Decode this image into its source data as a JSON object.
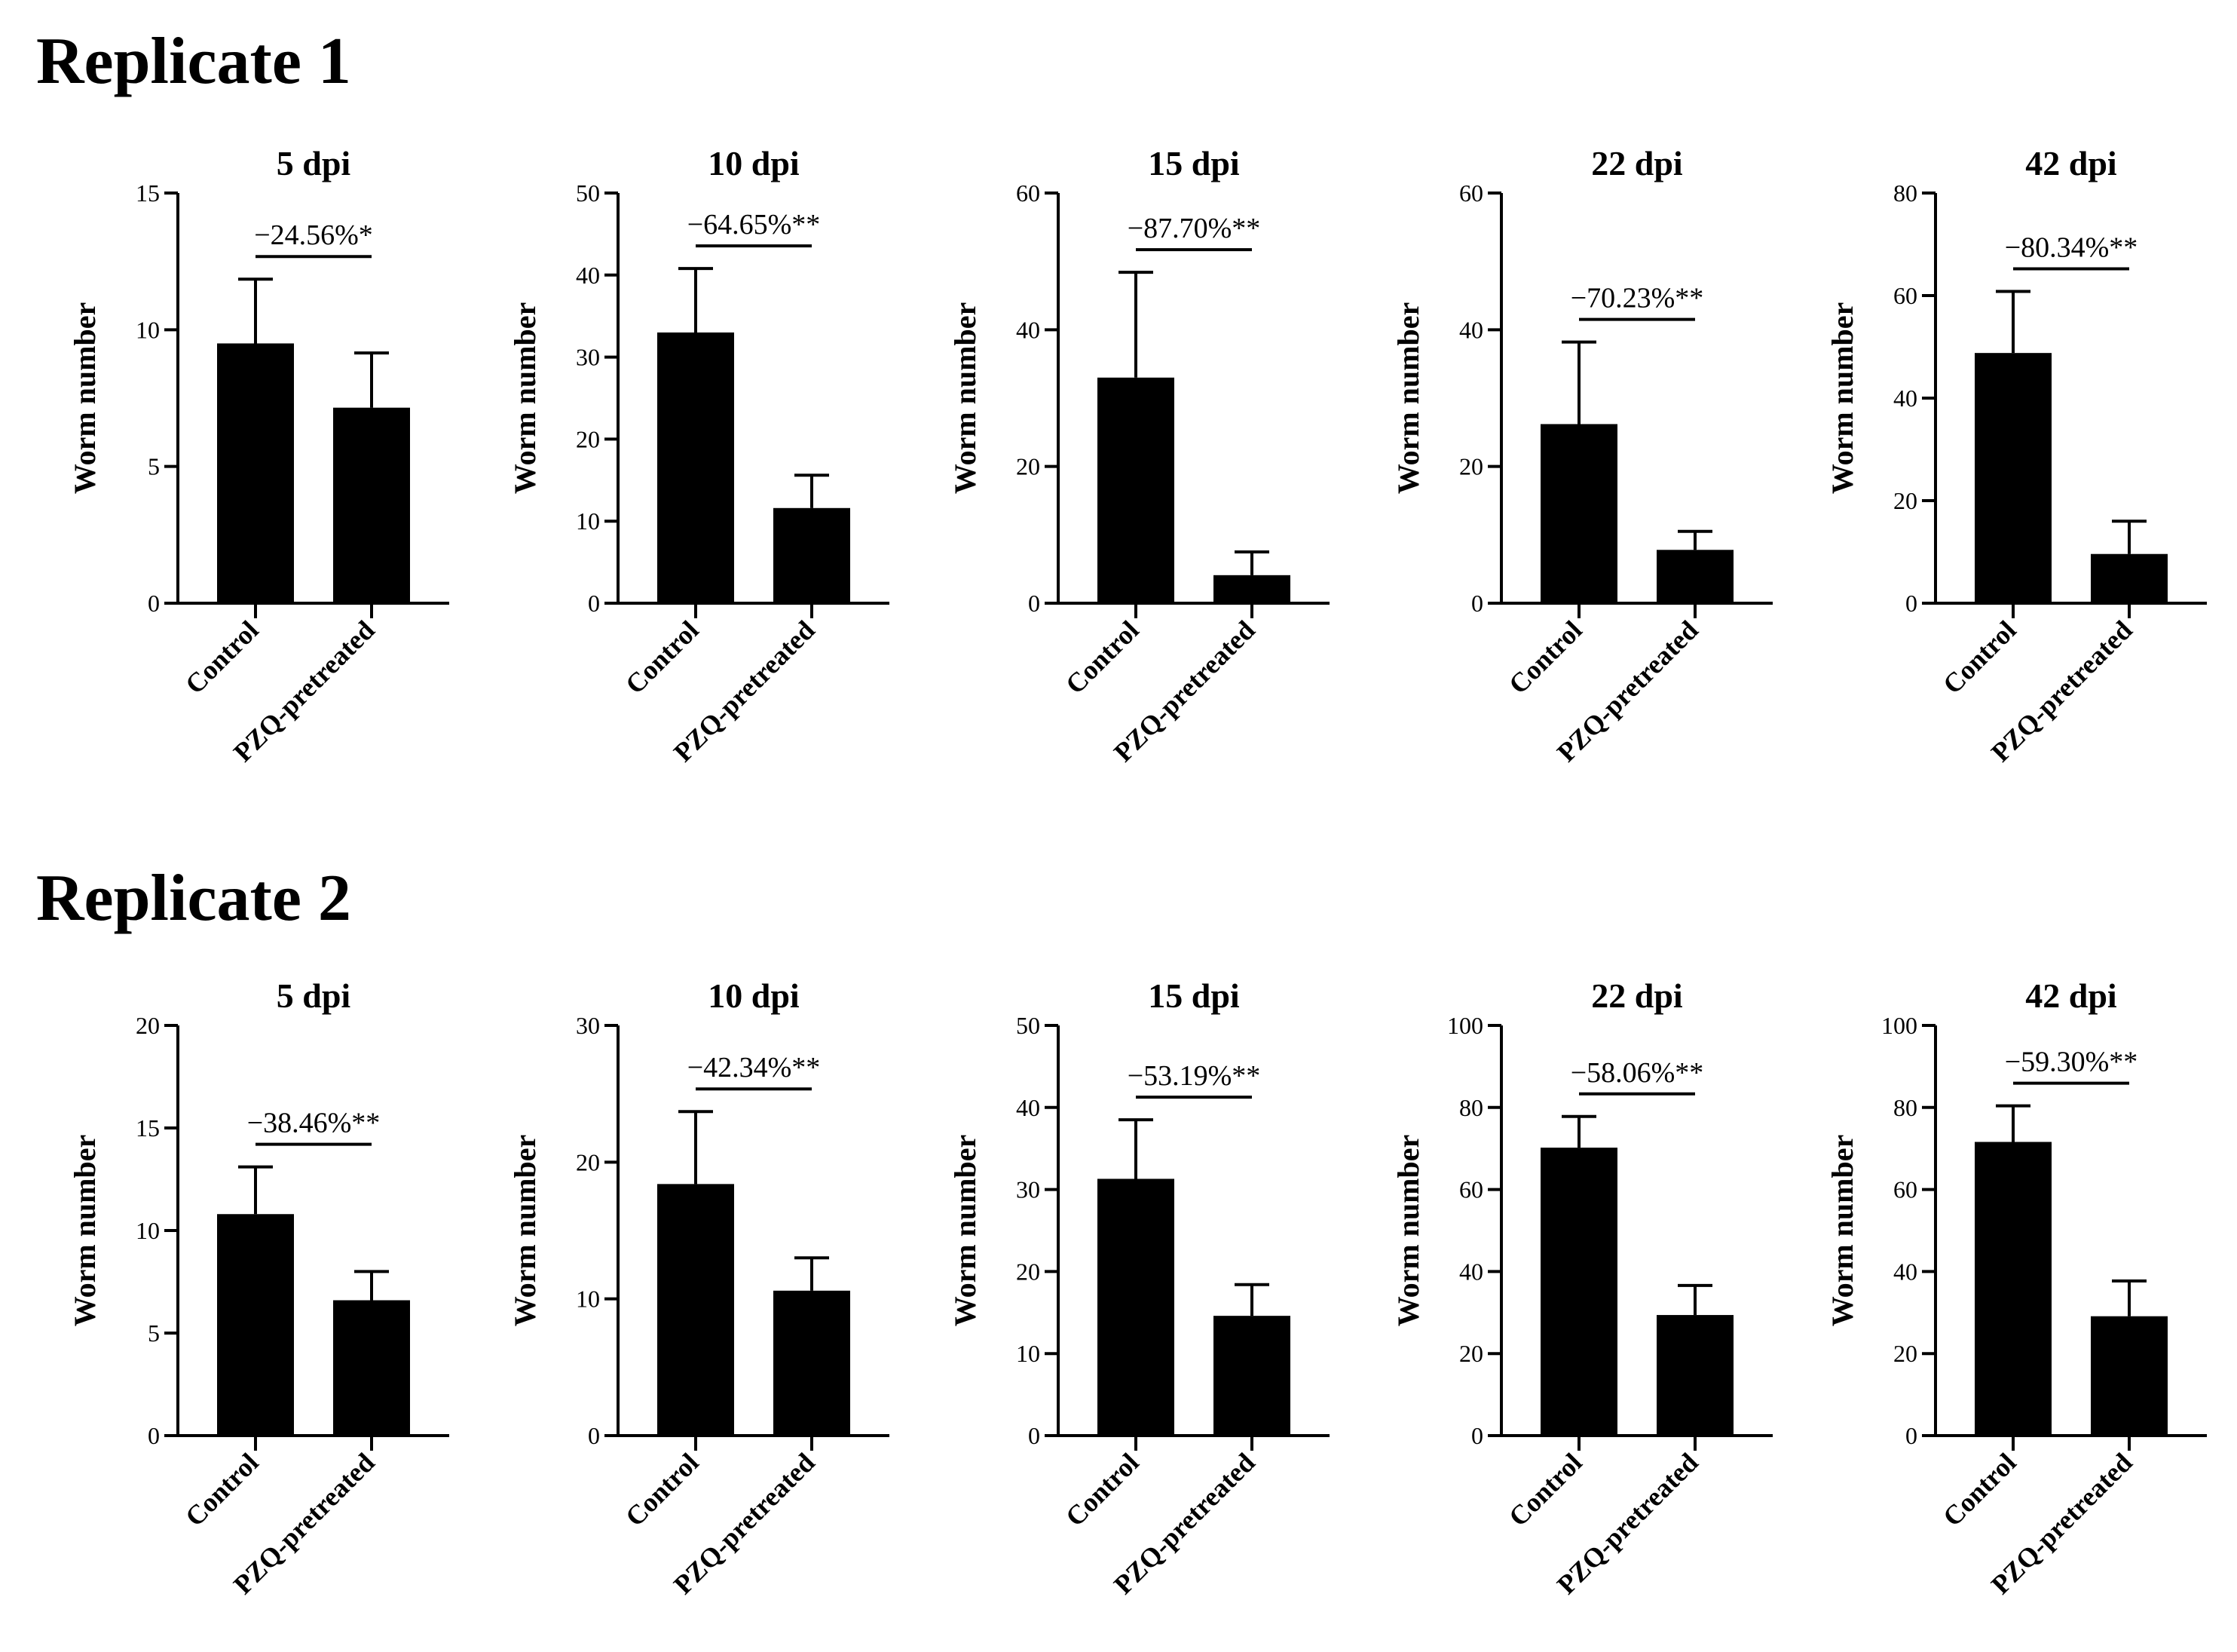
{
  "figure": {
    "replicate_titles": [
      "Replicate 1",
      "Replicate 2"
    ]
  },
  "chart_data": [
    {
      "type": "bar",
      "replicate": "Replicate 1",
      "title": "5 dpi",
      "categories": [
        "Control",
        "PZQ-pretreated"
      ],
      "values": [
        9.5,
        7.15
      ],
      "errors": [
        2.35,
        2.0
      ],
      "ylabel": "Worm number",
      "ylim": [
        0,
        15
      ],
      "yticks": [
        0,
        5,
        10,
        15
      ],
      "annotation": "−24.56%*",
      "bar_color": "#000000"
    },
    {
      "type": "bar",
      "replicate": "Replicate 1",
      "title": "10 dpi",
      "categories": [
        "Control",
        "PZQ-pretreated"
      ],
      "values": [
        33,
        11.6
      ],
      "errors": [
        7.8,
        4.0
      ],
      "ylabel": "Worm number",
      "ylim": [
        0,
        50
      ],
      "yticks": [
        0,
        10,
        20,
        30,
        40,
        50
      ],
      "annotation": "−64.65%**",
      "bar_color": "#000000"
    },
    {
      "type": "bar",
      "replicate": "Replicate 1",
      "title": "15 dpi",
      "categories": [
        "Control",
        "PZQ-pretreated"
      ],
      "values": [
        33,
        4.1
      ],
      "errors": [
        15.4,
        3.4
      ],
      "ylabel": "Worm number",
      "ylim": [
        0,
        60
      ],
      "yticks": [
        0,
        20,
        40,
        60
      ],
      "annotation": "−87.70%**",
      "bar_color": "#000000"
    },
    {
      "type": "bar",
      "replicate": "Replicate 1",
      "title": "22 dpi",
      "categories": [
        "Control",
        "PZQ-pretreated"
      ],
      "values": [
        26.2,
        7.8
      ],
      "errors": [
        12,
        2.7
      ],
      "ylabel": "Worm number",
      "ylim": [
        0,
        60
      ],
      "yticks": [
        0,
        20,
        40,
        60
      ],
      "annotation": "−70.23%**",
      "bar_color": "#000000"
    },
    {
      "type": "bar",
      "replicate": "Replicate 1",
      "title": "42 dpi",
      "categories": [
        "Control",
        "PZQ-pretreated"
      ],
      "values": [
        48.8,
        9.6
      ],
      "errors": [
        12,
        6.4
      ],
      "ylabel": "Worm number",
      "ylim": [
        0,
        80
      ],
      "yticks": [
        0,
        20,
        40,
        60,
        80
      ],
      "annotation": "−80.34%**",
      "bar_color": "#000000"
    },
    {
      "type": "bar",
      "replicate": "Replicate 2",
      "title": "5 dpi",
      "categories": [
        "Control",
        "PZQ-pretreated"
      ],
      "values": [
        10.8,
        6.6
      ],
      "errors": [
        2.3,
        1.4
      ],
      "ylabel": "Worm number",
      "ylim": [
        0,
        20
      ],
      "yticks": [
        0,
        5,
        10,
        15,
        20
      ],
      "annotation": "−38.46%**",
      "bar_color": "#000000"
    },
    {
      "type": "bar",
      "replicate": "Replicate 2",
      "title": "10 dpi",
      "categories": [
        "Control",
        "PZQ-pretreated"
      ],
      "values": [
        18.4,
        10.6
      ],
      "errors": [
        5.3,
        2.4
      ],
      "ylabel": "Worm number",
      "ylim": [
        0,
        30
      ],
      "yticks": [
        0,
        10,
        20,
        30
      ],
      "annotation": "−42.34%**",
      "bar_color": "#000000"
    },
    {
      "type": "bar",
      "replicate": "Replicate 2",
      "title": "15 dpi",
      "categories": [
        "Control",
        "PZQ-pretreated"
      ],
      "values": [
        31.3,
        14.6
      ],
      "errors": [
        7.2,
        3.8
      ],
      "ylabel": "Worm number",
      "ylim": [
        0,
        50
      ],
      "yticks": [
        0,
        10,
        20,
        30,
        40,
        50
      ],
      "annotation": "−53.19%**",
      "bar_color": "#000000"
    },
    {
      "type": "bar",
      "replicate": "Replicate 2",
      "title": "22 dpi",
      "categories": [
        "Control",
        "PZQ-pretreated"
      ],
      "values": [
        70.2,
        29.4
      ],
      "errors": [
        7.6,
        7.2
      ],
      "ylabel": "Worm number",
      "ylim": [
        0,
        100
      ],
      "yticks": [
        0,
        20,
        40,
        60,
        80,
        100
      ],
      "annotation": "−58.06%**",
      "bar_color": "#000000"
    },
    {
      "type": "bar",
      "replicate": "Replicate 2",
      "title": "42 dpi",
      "categories": [
        "Control",
        "PZQ-pretreated"
      ],
      "values": [
        71.6,
        29.1
      ],
      "errors": [
        8.8,
        8.6
      ],
      "ylabel": "Worm number",
      "ylim": [
        0,
        100
      ],
      "yticks": [
        0,
        20,
        40,
        60,
        80,
        100
      ],
      "annotation": "−59.30%**",
      "bar_color": "#000000"
    }
  ]
}
